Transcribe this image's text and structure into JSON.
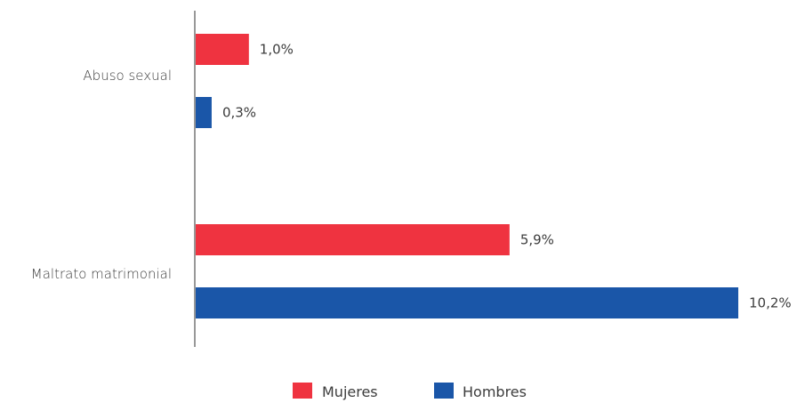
{
  "chart_data": {
    "type": "bar",
    "orientation": "horizontal",
    "categories": [
      "Abuso sexual",
      "Maltrato matrimonial"
    ],
    "series": [
      {
        "name": "Mujeres",
        "color": "#ef3340",
        "values": [
          1.0,
          5.9
        ],
        "labels": [
          "1,0%",
          "5,9%"
        ]
      },
      {
        "name": "Hombres",
        "color": "#1a56a8",
        "values": [
          0.3,
          10.2
        ],
        "labels": [
          "0,3%",
          "10,2%"
        ]
      }
    ],
    "xlim": [
      0,
      10.2
    ],
    "grid": false,
    "legend_position": "bottom"
  }
}
